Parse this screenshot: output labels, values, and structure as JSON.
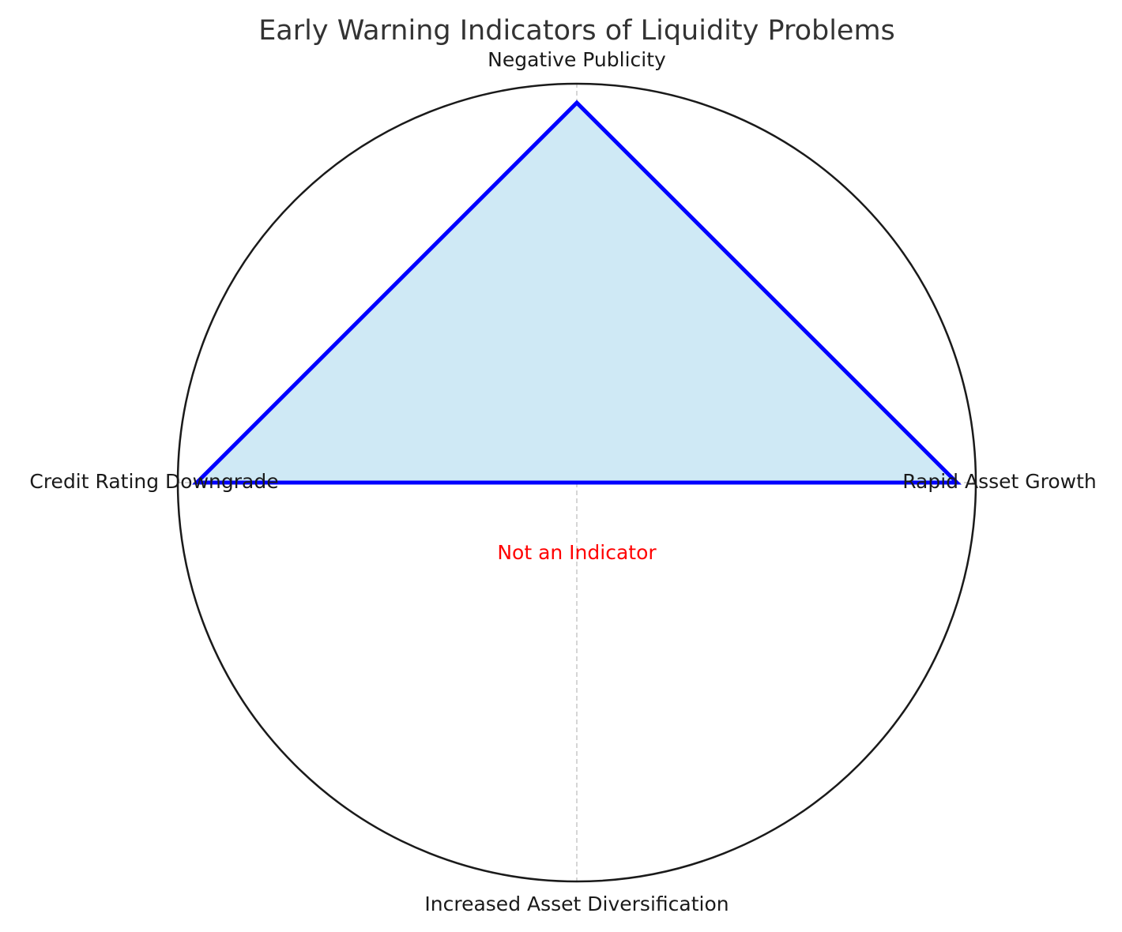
{
  "chart_data": {
    "type": "radar",
    "title": "Early Warning Indicators of Liquidity Problems",
    "categories": [
      "Rapid Asset Growth",
      "Negative Publicity",
      "Credit Rating Downgrade",
      "Increased Asset Diversification"
    ],
    "series": [
      {
        "values": [
          1,
          1,
          1,
          0
        ],
        "line_color": "#0000ff",
        "fill_color": "#cfe9f5"
      }
    ],
    "rlim": [
      0,
      1.05
    ],
    "grid": true,
    "annotation": {
      "text": "Not an Indicator",
      "color": "#ff0000"
    },
    "colors": {
      "outline": "#1a1a1a",
      "gridline": "#bfbfbf",
      "title": "#333333",
      "label": "#1a1a1a"
    }
  }
}
